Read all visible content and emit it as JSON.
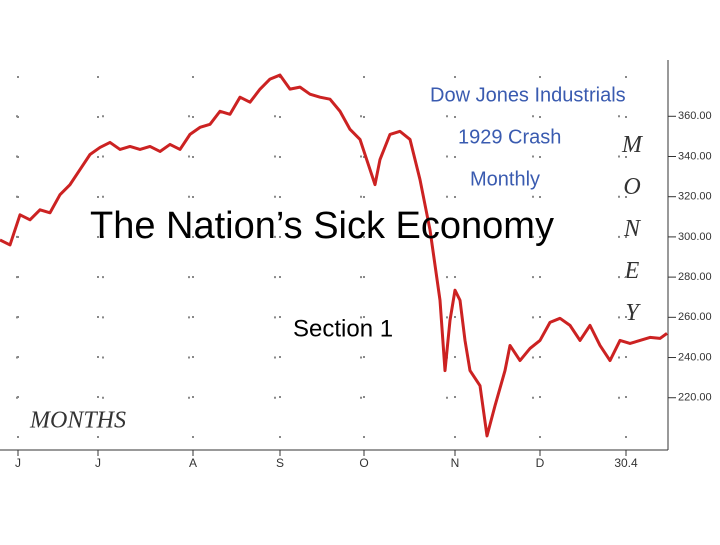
{
  "slide": {
    "title": "The Nation’s Sick Economy",
    "subtitle": "Section 1"
  },
  "chart_data": {
    "type": "line",
    "title": "Dow Jones Industrials",
    "subtitle": "1929 Crash",
    "period": "Monthly",
    "y_label": "MONEY",
    "x_label": "MONTHS",
    "x": [
      -0.9,
      -0.4,
      0.1,
      0.6,
      1.1,
      1.6,
      2.1,
      2.6,
      3.1,
      3.6,
      4.1,
      4.6,
      5.1,
      5.6,
      6.1,
      6.6,
      7.1,
      7.6,
      8.1,
      8.6,
      9.1,
      9.6,
      10.1,
      10.6,
      11.1,
      11.6,
      12.1,
      12.6,
      13.1,
      13.6,
      14.1,
      14.6,
      15.1,
      15.6,
      16.1,
      16.6,
      17.1,
      17.6,
      17.85,
      18.1,
      18.6,
      19.1,
      19.6,
      20.1,
      20.6,
      21.1,
      21.35,
      21.6,
      21.85,
      22.1,
      22.35,
      22.6,
      23.1,
      23.45,
      23.85,
      24.35,
      24.6,
      25.1,
      25.6,
      26.1,
      26.6,
      27.1,
      27.6,
      28.1,
      28.6,
      29.1,
      29.6,
      30.1,
      30.6,
      31.1,
      31.6,
      32.1,
      32.45
    ],
    "series": [
      {
        "color": "#cc2222",
        "values": [
          298.5,
          296,
          311,
          308.5,
          313.5,
          312,
          321,
          326,
          333.5,
          341,
          344.5,
          347,
          343.5,
          345,
          343.5,
          345,
          342.5,
          346,
          343.5,
          351,
          354.5,
          356,
          362.5,
          361,
          369.5,
          367,
          373.5,
          378.5,
          380.5,
          373.5,
          374.5,
          371,
          369.5,
          368.5,
          362.5,
          353.5,
          348.5,
          333.5,
          326,
          338.5,
          351,
          352.5,
          348.5,
          328.5,
          303.5,
          268.5,
          233.5,
          258.5,
          273.5,
          268.5,
          248.5,
          233.5,
          226,
          201,
          216,
          233.5,
          246,
          238.5,
          244.5,
          248.5,
          257.5,
          259.5,
          256,
          248.5,
          256,
          246,
          238.5,
          248.5,
          247,
          248.5,
          250,
          249.5,
          252
        ]
      }
    ],
    "xlim": [
      -0.9,
      32.5
    ],
    "xticks": [
      {
        "value": 0,
        "label": "J"
      },
      {
        "value": 4,
        "label": "J"
      },
      {
        "value": 8.75,
        "label": "A"
      },
      {
        "value": 13.1,
        "label": "S"
      },
      {
        "value": 17.3,
        "label": "O"
      },
      {
        "value": 21.85,
        "label": "N"
      },
      {
        "value": 26.1,
        "label": "D"
      },
      30.4
    ],
    "ylim": [
      194,
      388
    ],
    "yticks": [
      {
        "value": 220,
        "label": "220.00"
      },
      {
        "value": 240,
        "label": "240.00"
      },
      {
        "value": 260,
        "label": "260.00"
      },
      {
        "value": 280,
        "label": "280.00"
      },
      {
        "value": 300,
        "label": "300.00"
      },
      {
        "value": 320,
        "label": "320.00"
      },
      {
        "value": 340,
        "label": "340.00"
      },
      {
        "value": 360,
        "label": "360.00"
      }
    ],
    "grid": true
  }
}
